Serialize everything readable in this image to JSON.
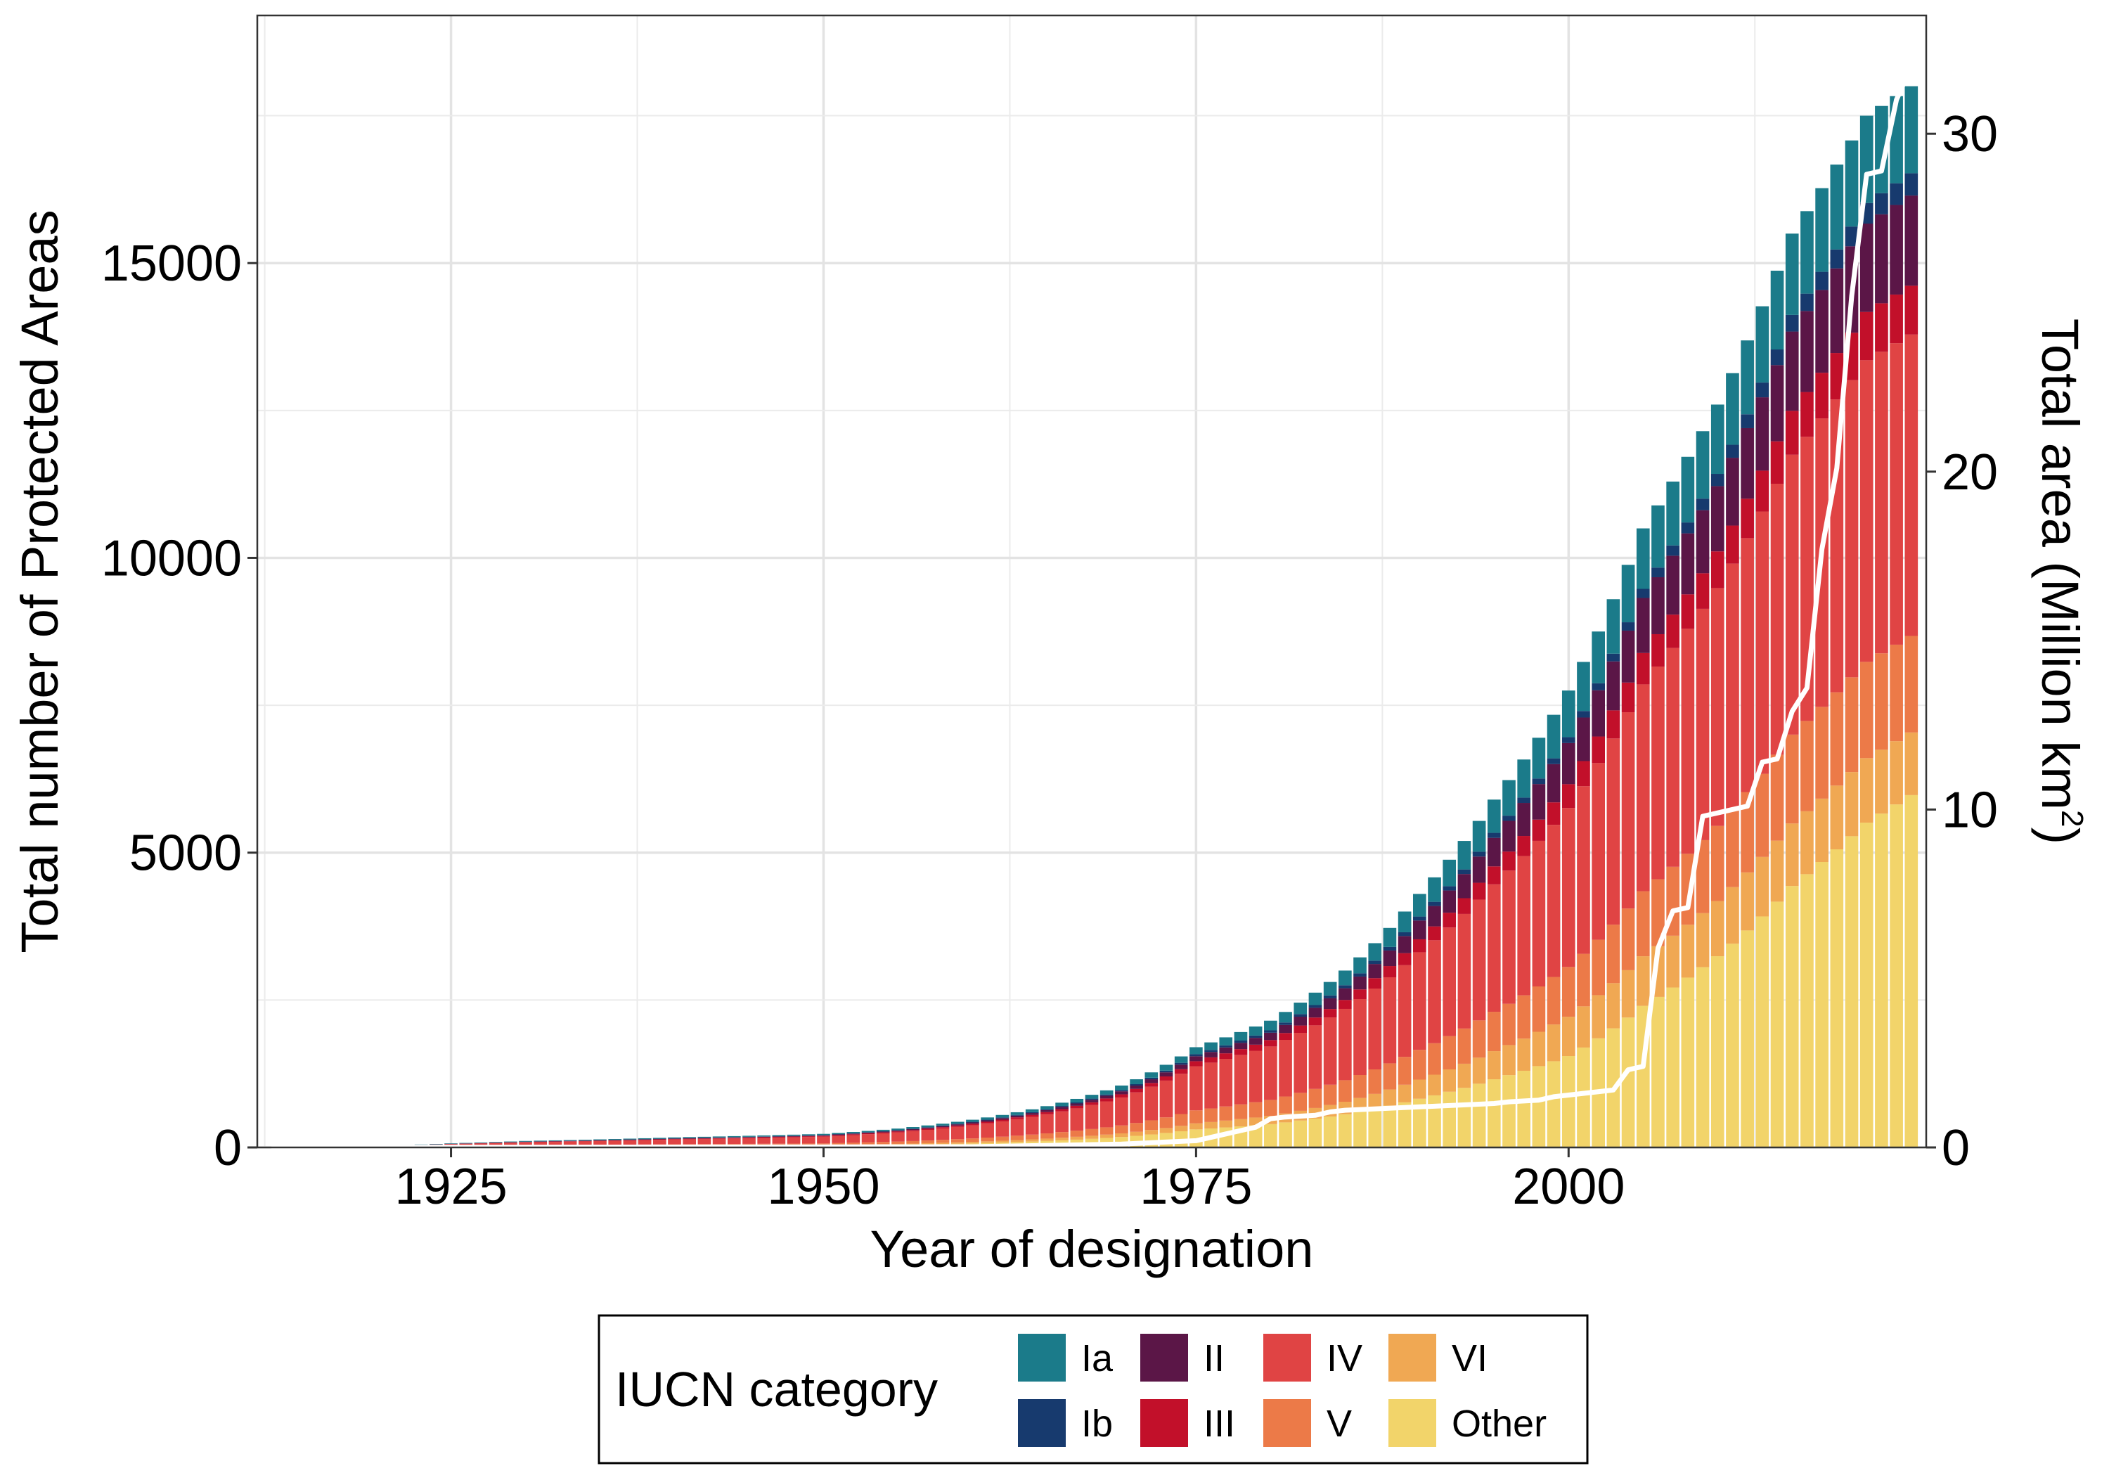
{
  "chart_data": {
    "type": "bar",
    "subtype": "stacked-bar with secondary-axis line",
    "xlabel": "Year of designation",
    "ylabel": "Total number of Protected Areas",
    "y2label": "Total area (Million km",
    "y2label_superscript": "2",
    "y2label_close": ")",
    "xlim": [
      1912,
      2024
    ],
    "ylim": [
      0,
      19200
    ],
    "y2lim": [
      0,
      33.5
    ],
    "xticks": [
      1925,
      1950,
      1975,
      2000
    ],
    "yticks": [
      0,
      5000,
      10000,
      15000
    ],
    "y2ticks": [
      0,
      10,
      20,
      30
    ],
    "xtick_labels": [
      "1925",
      "1950",
      "1975",
      "2000"
    ],
    "ytick_labels": [
      "0",
      "5000",
      "10000",
      "15000"
    ],
    "y2tick_labels": [
      "0",
      "10",
      "20",
      "30"
    ],
    "grid": true,
    "legend": {
      "title": "IUCN category",
      "position": "bottom",
      "entries": [
        "Ia",
        "Ib",
        "II",
        "III",
        "IV",
        "V",
        "VI",
        "Other"
      ]
    },
    "colors": {
      "Ia": "#1b7b8a",
      "Ib": "#173a6e",
      "II": "#5b1647",
      "III": "#c2102a",
      "IV": "#e04444",
      "V": "#ec7a48",
      "VI": "#f0a853",
      "Other": "#f2d46a",
      "line": "#ffffff"
    },
    "bar_years": {
      "start": 1913,
      "end": 2023
    },
    "stack_order": [
      "Other",
      "VI",
      "V",
      "IV",
      "III",
      "II",
      "Ib",
      "Ia"
    ],
    "totals_keypoints": [
      [
        1913,
        10
      ],
      [
        1920,
        30
      ],
      [
        1925,
        70
      ],
      [
        1930,
        110
      ],
      [
        1940,
        170
      ],
      [
        1950,
        230
      ],
      [
        1955,
        320
      ],
      [
        1960,
        470
      ],
      [
        1965,
        700
      ],
      [
        1970,
        1050
      ],
      [
        1975,
        1700
      ],
      [
        1980,
        2150
      ],
      [
        1985,
        3000
      ],
      [
        1990,
        4300
      ],
      [
        1995,
        5900
      ],
      [
        2000,
        7750
      ],
      [
        2005,
        10500
      ],
      [
        2010,
        12600
      ],
      [
        2015,
        15500
      ],
      [
        2020,
        17500
      ],
      [
        2023,
        18000
      ]
    ],
    "fractions_keypoints": [
      {
        "year": 1913,
        "Ia": 0.1,
        "Ib": 0.03,
        "II": 0.04,
        "III": 0.06,
        "IV": 0.4,
        "V": 0.15,
        "VI": 0.05,
        "Other": 0.17
      },
      {
        "year": 1950,
        "Ia": 0.08,
        "Ib": 0.025,
        "II": 0.045,
        "III": 0.055,
        "IV": 0.5,
        "V": 0.12,
        "VI": 0.055,
        "Other": 0.12
      },
      {
        "year": 1975,
        "Ia": 0.07,
        "Ib": 0.02,
        "II": 0.05,
        "III": 0.05,
        "IV": 0.44,
        "V": 0.13,
        "VI": 0.06,
        "Other": 0.18
      },
      {
        "year": 2000,
        "Ia": 0.102,
        "Ib": 0.013,
        "II": 0.09,
        "III": 0.052,
        "IV": 0.348,
        "V": 0.109,
        "VI": 0.086,
        "Other": 0.2
      },
      {
        "year": 2023,
        "Ia": 0.082,
        "Ib": 0.021,
        "II": 0.085,
        "III": 0.046,
        "IV": 0.284,
        "V": 0.091,
        "VI": 0.059,
        "Other": 0.332
      }
    ],
    "area_series": {
      "name": "Total area",
      "x": [
        1913,
        1960,
        1970,
        1975,
        1977,
        1978,
        1979,
        1980,
        1981,
        1983,
        1984,
        1985,
        1990,
        1995,
        1996,
        1998,
        1999,
        2000,
        2003,
        2004,
        2005,
        2006,
        2007,
        2008,
        2009,
        2010,
        2012,
        2013,
        2014,
        2015,
        2016,
        2017,
        2018,
        2019,
        2020,
        2021,
        2022,
        2023
      ],
      "y": [
        0,
        0.02,
        0.1,
        0.2,
        0.4,
        0.5,
        0.6,
        0.85,
        0.9,
        0.95,
        1.05,
        1.1,
        1.2,
        1.3,
        1.35,
        1.4,
        1.5,
        1.55,
        1.7,
        2.3,
        2.4,
        5.9,
        7.0,
        7.1,
        9.8,
        9.9,
        10.1,
        11.4,
        11.5,
        12.9,
        13.6,
        17.7,
        20.1,
        25.2,
        28.8,
        28.9,
        31.0,
        32.0
      ]
    }
  }
}
